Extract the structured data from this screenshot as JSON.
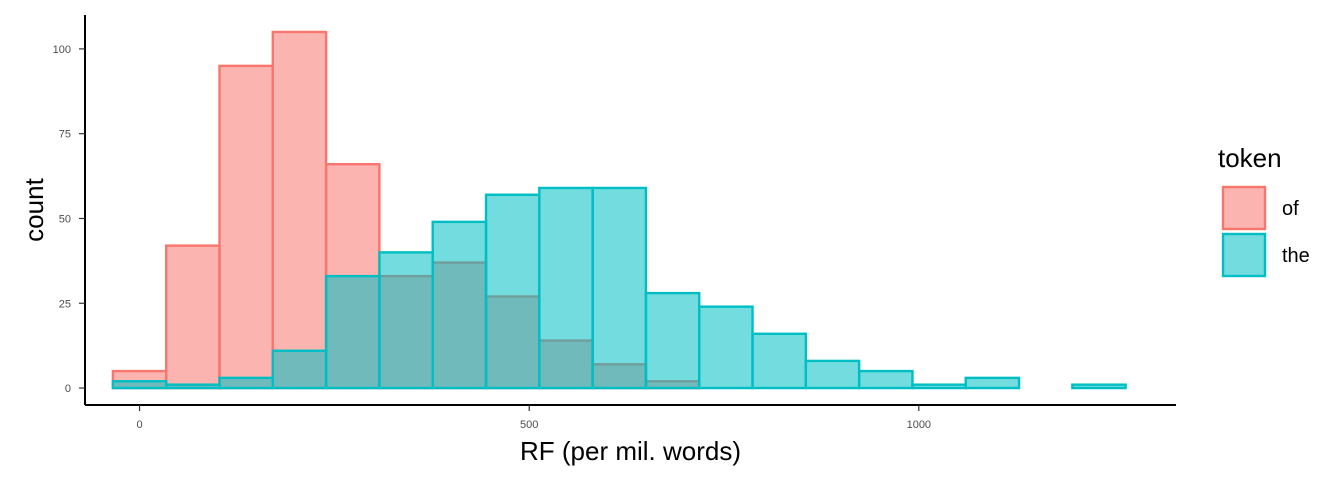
{
  "chart_data": {
    "type": "bar",
    "xlabel": "RF (per mil. words)",
    "ylabel": "count",
    "xlim": [
      -70,
      1330
    ],
    "ylim": [
      -5,
      110
    ],
    "x_ticks": [
      0,
      500,
      1000
    ],
    "y_ticks": [
      0,
      25,
      50,
      75,
      100
    ],
    "bin_width": 68.4,
    "bin_start": -34.2,
    "grid": false,
    "legend": {
      "title": "token",
      "position": "right"
    },
    "series": [
      {
        "name": "of",
        "fill": "#F8766D",
        "values": [
          5,
          42,
          95,
          105,
          66,
          33,
          37,
          27,
          14,
          7,
          2,
          0,
          0,
          0,
          0,
          0,
          0,
          0,
          0
        ]
      },
      {
        "name": "the",
        "fill": "#00BFC4",
        "values": [
          2,
          1,
          3,
          11,
          33,
          40,
          49,
          57,
          59,
          59,
          28,
          24,
          16,
          8,
          5,
          1,
          3,
          0,
          1
        ]
      }
    ]
  }
}
